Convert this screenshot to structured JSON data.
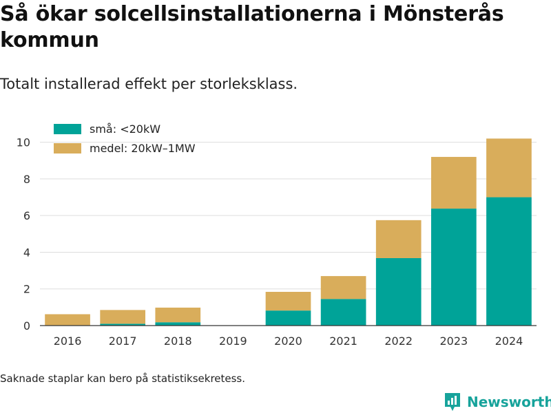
{
  "title": "Så ökar solcellsinstallationerna i Mönsterås kommun",
  "subtitle": "Totalt installerad effekt per storleksklass.",
  "note": "Saknade staplar kan bero på statistiksekretess.",
  "brand": {
    "name": "Newsworthy",
    "logo_icon": "newsworthy-chart-logo-icon"
  },
  "colors": {
    "sma": "#00a398",
    "medel": "#d9ad5b",
    "grid": "#dddddd",
    "axis": "#333333",
    "brand": "#17a39b"
  },
  "chart_data": {
    "type": "bar",
    "stacked": true,
    "categories": [
      "2016",
      "2017",
      "2018",
      "2019",
      "2020",
      "2021",
      "2022",
      "2023",
      "2024"
    ],
    "series": [
      {
        "name": "små: <20kW",
        "color": "#00a398",
        "values": [
          0,
          0.1,
          0.18,
          null,
          0.82,
          1.45,
          3.68,
          6.38,
          7.0
        ]
      },
      {
        "name": "medel: 20kW–1MW",
        "color": "#d9ad5b",
        "values": [
          0.62,
          0.75,
          0.8,
          null,
          1.02,
          1.25,
          2.07,
          2.82,
          3.2
        ]
      }
    ],
    "ylim": [
      0,
      11
    ],
    "yticks": [
      0,
      2,
      4,
      6,
      8,
      10
    ],
    "xlabel": "",
    "ylabel": "",
    "grid": true,
    "legend": "top-left"
  }
}
